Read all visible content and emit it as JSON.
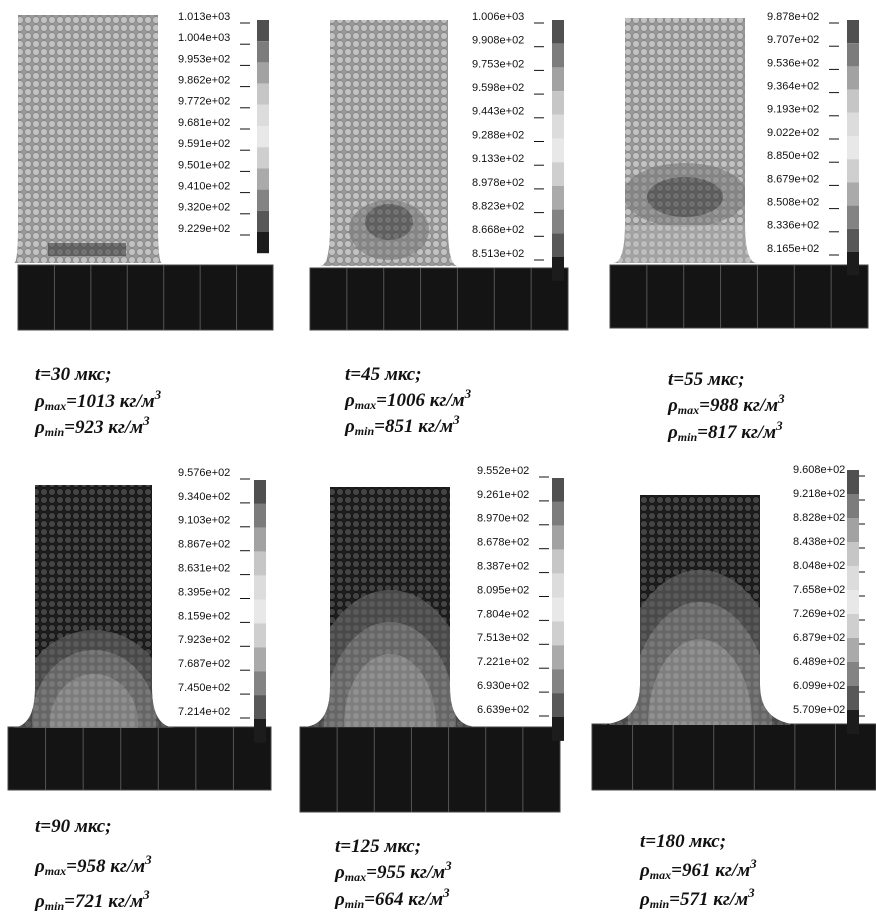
{
  "panels": [
    {
      "colorbar": [
        "1.013e+03",
        "1.004e+03",
        "9.953e+02",
        "9.862e+02",
        "9.772e+02",
        "9.681e+02",
        "9.591e+02",
        "9.501e+02",
        "9.410e+02",
        "9.320e+02",
        "9.229e+02"
      ],
      "time": "t=30 мкс;",
      "rho_max": {
        "symbol": "ρ",
        "sub": "max",
        "text": "=1013 кг/м",
        "sup": "3"
      },
      "rho_min": {
        "symbol": "ρ",
        "sub": "min",
        "text": "=923 кг/м",
        "sup": "3"
      }
    },
    {
      "colorbar": [
        "1.006e+03",
        "9.908e+02",
        "9.753e+02",
        "9.598e+02",
        "9.443e+02",
        "9.288e+02",
        "9.133e+02",
        "8.978e+02",
        "8.823e+02",
        "8.668e+02",
        "8.513e+02"
      ],
      "time": "t=45 мкс;",
      "rho_max": {
        "symbol": "ρ",
        "sub": "max",
        "text": "=1006 кг/м",
        "sup": "3"
      },
      "rho_min": {
        "symbol": "ρ",
        "sub": "min",
        "text": "=851 кг/м",
        "sup": "3"
      }
    },
    {
      "colorbar": [
        "9.878e+02",
        "9.707e+02",
        "9.536e+02",
        "9.364e+02",
        "9.193e+02",
        "9.022e+02",
        "8.850e+02",
        "8.679e+02",
        "8.508e+02",
        "8.336e+02",
        "8.165e+02"
      ],
      "time": "t=55 мкс;",
      "rho_max": {
        "symbol": "ρ",
        "sub": "max",
        "text": "=988 кг/м",
        "sup": "3"
      },
      "rho_min": {
        "symbol": "ρ",
        "sub": "min",
        "text": "=817 кг/м",
        "sup": "3"
      }
    },
    {
      "colorbar": [
        "9.576e+02",
        "9.340e+02",
        "9.103e+02",
        "8.867e+02",
        "8.631e+02",
        "8.395e+02",
        "8.159e+02",
        "7.923e+02",
        "7.687e+02",
        "7.450e+02",
        "7.214e+02"
      ],
      "time": "t=90 мкс;",
      "rho_max": {
        "symbol": "ρ",
        "sub": "max",
        "text": "=958 кг/м",
        "sup": "3"
      },
      "rho_min": {
        "symbol": "ρ",
        "sub": "min",
        "text": "=721 кг/м",
        "sup": "3"
      }
    },
    {
      "colorbar": [
        "9.552e+02",
        "9.261e+02",
        "8.970e+02",
        "8.678e+02",
        "8.387e+02",
        "8.095e+02",
        "7.804e+02",
        "7.513e+02",
        "7.221e+02",
        "6.930e+02",
        "6.639e+02"
      ],
      "time": "t=125 мкс;",
      "rho_max": {
        "symbol": "ρ",
        "sub": "max",
        "text": "=955 кг/м",
        "sup": "3"
      },
      "rho_min": {
        "symbol": "ρ",
        "sub": "min",
        "text": "=664 кг/м",
        "sup": "3"
      }
    },
    {
      "colorbar": [
        "9.608e+02",
        "9.218e+02",
        "8.828e+02",
        "8.438e+02",
        "8.048e+02",
        "7.658e+02",
        "7.269e+02",
        "6.879e+02",
        "6.489e+02",
        "6.099e+02",
        "5.709e+02"
      ],
      "time": "t=180 мкс;",
      "rho_max": {
        "symbol": "ρ",
        "sub": "max",
        "text": "=961 кг/м",
        "sup": "3"
      },
      "rho_min": {
        "symbol": "ρ",
        "sub": "min",
        "text": "=571 кг/м",
        "sup": "3"
      }
    }
  ]
}
